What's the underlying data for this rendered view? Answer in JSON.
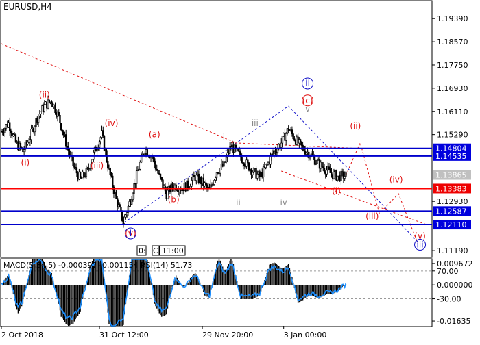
{
  "symbol_label": "EURUSD,H4",
  "indicator_label": "MACD(5,34,5) -0.000397 -0.001154 RSI(14) 51.73",
  "time_box": {
    "a": "0:",
    "b": "C",
    "c": "11:00"
  },
  "colors": {
    "background": "#ffffff",
    "candles": "#000000",
    "support_resistance": "#0000cc",
    "current_level": "#ff0000",
    "wave_red": "#e01010",
    "wave_blue": "#1010c8",
    "wave_gray": "#888888",
    "macd_hist": "#000000",
    "rsi_line": "#1e90ff",
    "price_tag_blue": "#0000dd",
    "price_tag_red": "#ee0000",
    "price_tag_gray": "#c0c0c0"
  },
  "chart_data": {
    "type": "candlestick",
    "price_axis_labels": [
      "1.19390",
      "1.18570",
      "1.17750",
      "1.16930",
      "1.16110",
      "1.15290",
      "1.12930",
      "1.11190"
    ],
    "time_axis_labels": [
      "2 Oct 2018",
      "31 Oct 12:00",
      "29 Nov 20:00",
      "3 Jan 00:00"
    ],
    "horizontal_levels": [
      {
        "label": "1.14804",
        "value": 1.14804,
        "style": "blue"
      },
      {
        "label": "1.14535",
        "value": 1.14535,
        "style": "blue"
      },
      {
        "label": "1.13865",
        "value": 1.13865,
        "style": "gray"
      },
      {
        "label": "1.13383",
        "value": 1.13383,
        "style": "red"
      },
      {
        "label": "1.12587",
        "value": 1.12587,
        "style": "blue"
      },
      {
        "label": "1.12110",
        "value": 1.1211,
        "style": "blue"
      }
    ],
    "price_range": [
      1.1095,
      1.2
    ],
    "close_path": [
      [
        0,
        1.154
      ],
      [
        3,
        1.157
      ],
      [
        6,
        1.15
      ],
      [
        9,
        1.147
      ],
      [
        12,
        1.152
      ],
      [
        15,
        1.159
      ],
      [
        18,
        1.163
      ],
      [
        21,
        1.165
      ],
      [
        24,
        1.159
      ],
      [
        27,
        1.15
      ],
      [
        30,
        1.142
      ],
      [
        33,
        1.137
      ],
      [
        36,
        1.14
      ],
      [
        39,
        1.147
      ],
      [
        42,
        1.153
      ],
      [
        45,
        1.14
      ],
      [
        48,
        1.13
      ],
      [
        51,
        1.122
      ],
      [
        54,
        1.13
      ],
      [
        57,
        1.14
      ],
      [
        60,
        1.148
      ],
      [
        63,
        1.145
      ],
      [
        66,
        1.138
      ],
      [
        69,
        1.132
      ],
      [
        72,
        1.135
      ],
      [
        75,
        1.134
      ],
      [
        78,
        1.135
      ],
      [
        81,
        1.138
      ],
      [
        84,
        1.136
      ],
      [
        87,
        1.133
      ],
      [
        90,
        1.14
      ],
      [
        93,
        1.142
      ],
      [
        96,
        1.149
      ],
      [
        99,
        1.146
      ],
      [
        102,
        1.143
      ],
      [
        105,
        1.14
      ],
      [
        108,
        1.138
      ],
      [
        111,
        1.142
      ],
      [
        114,
        1.147
      ],
      [
        117,
        1.15
      ],
      [
        120,
        1.155
      ],
      [
        123,
        1.151
      ],
      [
        126,
        1.148
      ],
      [
        129,
        1.146
      ],
      [
        132,
        1.143
      ],
      [
        135,
        1.141
      ],
      [
        138,
        1.139
      ],
      [
        141,
        1.138
      ],
      [
        144,
        1.1385
      ]
    ],
    "wave_labels": [
      {
        "text": "(i)",
        "color": "red",
        "circled": false
      },
      {
        "text": "(ii)",
        "color": "red",
        "circled": false
      },
      {
        "text": "(iii)",
        "color": "red",
        "circled": false
      },
      {
        "text": "(iv)",
        "color": "red",
        "circled": false
      },
      {
        "text": "(v)",
        "color": "red",
        "circled": false
      },
      {
        "text": "i",
        "color": "blue",
        "circled": true
      },
      {
        "text": "(a)",
        "color": "red",
        "circled": false
      },
      {
        "text": "(b)",
        "color": "red",
        "circled": false
      },
      {
        "text": "i",
        "color": "gray",
        "circled": false
      },
      {
        "text": "ii",
        "color": "gray",
        "circled": false
      },
      {
        "text": "iii",
        "color": "gray",
        "circled": false
      },
      {
        "text": "iv",
        "color": "gray",
        "circled": false
      },
      {
        "text": "v",
        "color": "gray",
        "circled": false
      },
      {
        "text": "(c)",
        "color": "red",
        "circled": true
      },
      {
        "text": "ii",
        "color": "blue",
        "circled": true
      },
      {
        "text": "(i)",
        "color": "red",
        "circled": false
      },
      {
        "text": "(ii)",
        "color": "red",
        "circled": false
      },
      {
        "text": "(iii)",
        "color": "red",
        "circled": false
      },
      {
        "text": "(iv)",
        "color": "red",
        "circled": false
      },
      {
        "text": "(v)",
        "color": "red",
        "circled": false
      },
      {
        "text": "iii",
        "color": "blue",
        "circled": true
      }
    ],
    "forecast_path": [
      [
        144,
        1.1385
      ],
      [
        150,
        1.15
      ],
      [
        158,
        1.125
      ],
      [
        166,
        1.132
      ],
      [
        174,
        1.1145
      ]
    ],
    "indicator": {
      "axis_labels": [
        "0.009672",
        "70.00",
        "0.000000",
        "-30.00",
        "-0.01635"
      ],
      "macd_range": [
        -0.0185,
        0.0115
      ],
      "rsi_levels": [
        70,
        30
      ]
    }
  }
}
